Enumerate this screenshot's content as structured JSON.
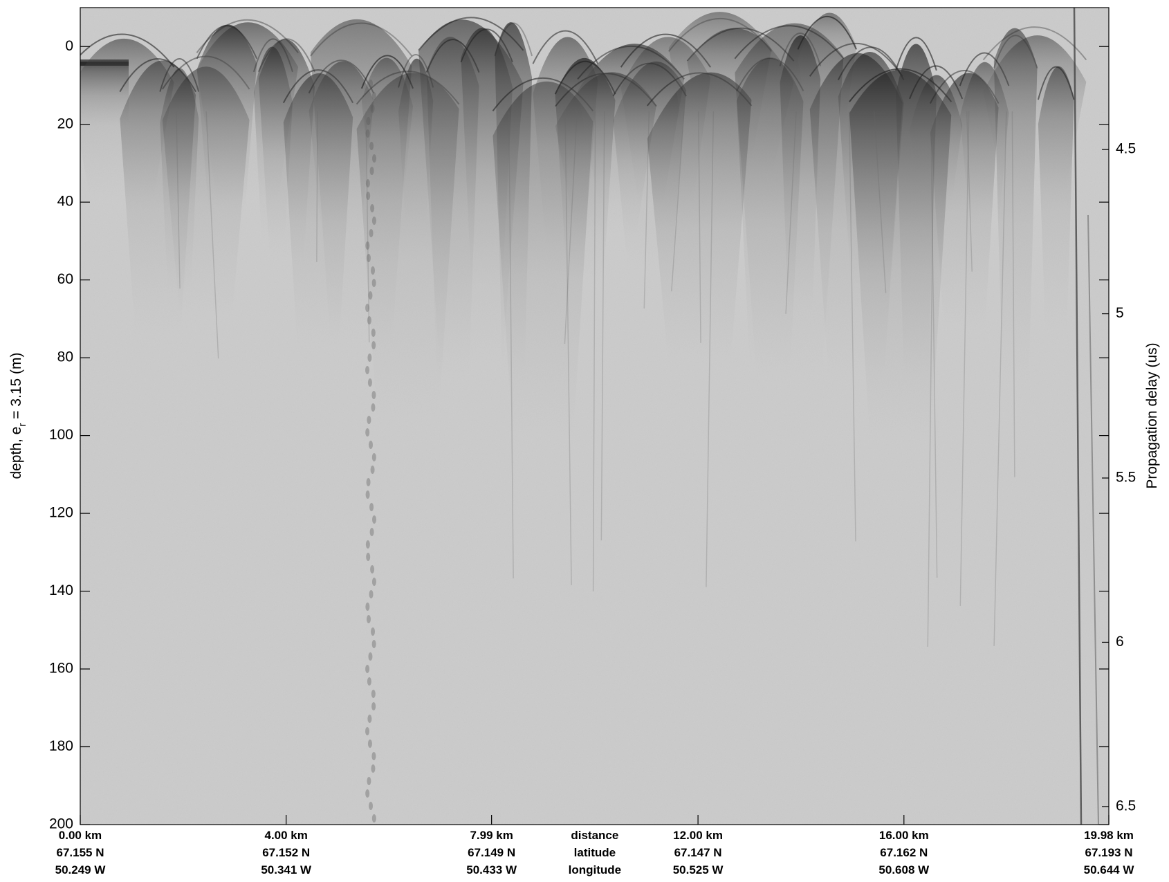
{
  "chart_data": {
    "type": "image",
    "ylabel": [
      "depth, e",
      "r",
      " = 3.15 (m)"
    ],
    "y2label": "Propagation delay (us)",
    "xlabel": [
      "distance",
      "latitude",
      "longitude"
    ],
    "ylim": [
      -10,
      200
    ],
    "yticks": [
      0,
      20,
      40,
      60,
      80,
      100,
      120,
      140,
      160,
      180,
      200
    ],
    "y2lim": [
      4.068,
      6.555
    ],
    "y2ticks": [
      4.5,
      5,
      5.5,
      6,
      6.5
    ],
    "xlim": [
      0,
      19.98
    ],
    "xticks": [
      {
        "value": 0,
        "label": "0.00 km"
      },
      {
        "value": 4,
        "label": "4.00 km"
      },
      {
        "value": 7.99,
        "label": "7.99 km"
      },
      {
        "value": 12,
        "label": "12.00 km"
      },
      {
        "value": 16,
        "label": "16.00 km"
      },
      {
        "value": 19.98,
        "label": "19.98 km"
      }
    ],
    "xtick_latitudes": [
      "67.155 N",
      "67.152 N",
      "67.149 N",
      "67.147 N",
      "67.162 N",
      "67.193 N"
    ],
    "xtick_longitudes": [
      "50.249 W",
      "50.341 W",
      "50.433 W",
      "50.525 W",
      "50.608 W",
      "50.644 W"
    ]
  }
}
